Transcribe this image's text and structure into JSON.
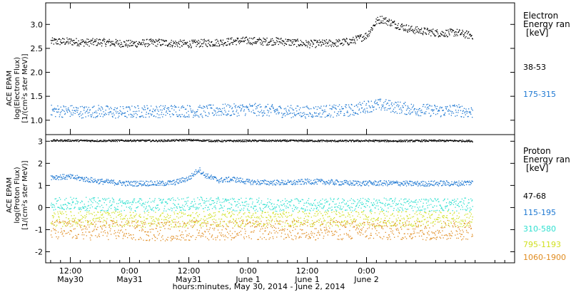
{
  "chart_data": [
    {
      "type": "scatter",
      "panel": "electron",
      "ylabel_lines": [
        "ACE EPAM",
        "log(Electron Flux)",
        "[1/(cm²s ster MeV)]"
      ],
      "ylim": [
        0.7,
        3.45
      ],
      "yticks": [
        1.0,
        1.5,
        2.0,
        2.5,
        3.0
      ],
      "ytick_labels": [
        "1.0",
        "1.5",
        "2.0",
        "2.5",
        "3.0"
      ],
      "legend_title_lines": [
        "Electron",
        "Energy ran",
        "[keV]"
      ],
      "series": [
        {
          "name": "38-53",
          "color": "#000000",
          "x": [
            0,
            3,
            6,
            9,
            12,
            15,
            18,
            21,
            24,
            27,
            30,
            33,
            36,
            39,
            42,
            45,
            48,
            51,
            54,
            57,
            60,
            62,
            63,
            66,
            69,
            72,
            75,
            78,
            81
          ],
          "y": [
            2.65,
            2.63,
            2.64,
            2.62,
            2.6,
            2.62,
            2.63,
            2.61,
            2.6,
            2.62,
            2.63,
            2.66,
            2.67,
            2.65,
            2.66,
            2.63,
            2.6,
            2.61,
            2.62,
            2.66,
            2.78,
            3.08,
            3.12,
            3.0,
            2.9,
            2.86,
            2.82,
            2.84,
            2.78
          ],
          "spread": 0.08
        },
        {
          "name": "175-315",
          "color": "#1e78d2",
          "x": [
            0,
            3,
            6,
            9,
            12,
            15,
            18,
            21,
            24,
            27,
            30,
            33,
            36,
            39,
            42,
            45,
            48,
            51,
            54,
            57,
            60,
            63,
            66,
            69,
            72,
            75,
            78,
            81
          ],
          "y": [
            1.2,
            1.18,
            1.2,
            1.17,
            1.18,
            1.2,
            1.19,
            1.21,
            1.2,
            1.19,
            1.22,
            1.22,
            1.24,
            1.22,
            1.2,
            1.19,
            1.18,
            1.2,
            1.2,
            1.22,
            1.3,
            1.33,
            1.28,
            1.24,
            1.22,
            1.2,
            1.22,
            1.18
          ],
          "spread": 0.13
        }
      ]
    },
    {
      "type": "scatter",
      "panel": "proton",
      "ylabel_lines": [
        "ACE EPAM",
        "log(Proton Flux)",
        "[1/(cm²s ster MeV)]"
      ],
      "ylim": [
        -2.5,
        3.3
      ],
      "yticks": [
        -2,
        -1,
        0,
        1,
        2,
        3
      ],
      "ytick_labels": [
        "-2",
        "-1",
        "0",
        "1",
        "2",
        "3"
      ],
      "legend_title_lines": [
        "Proton",
        "Energy ran",
        "[keV]"
      ],
      "series": [
        {
          "name": "47-68",
          "color": "#000000",
          "x": [
            0,
            6,
            12,
            18,
            24,
            30,
            36,
            42,
            48,
            54,
            60,
            66,
            72,
            78,
            81
          ],
          "y": [
            3.05,
            3.04,
            3.05,
            3.04,
            3.07,
            3.03,
            3.04,
            3.04,
            3.04,
            3.03,
            3.04,
            3.03,
            3.04,
            3.04,
            3.03
          ],
          "spread": 0.04
        },
        {
          "name": "115-195",
          "color": "#1e78d2",
          "x": [
            0,
            3,
            6,
            9,
            12,
            15,
            18,
            21,
            24,
            26,
            27,
            30,
            33,
            36,
            39,
            42,
            45,
            48,
            51,
            54,
            57,
            60,
            63,
            66,
            69,
            72,
            75,
            78,
            81
          ],
          "y": [
            1.4,
            1.3,
            1.2,
            1.15,
            1.1,
            1.12,
            1.1,
            1.15,
            1.35,
            1.75,
            1.5,
            1.25,
            1.3,
            1.18,
            1.15,
            1.15,
            1.14,
            1.2,
            1.18,
            1.15,
            1.12,
            1.12,
            1.12,
            1.12,
            1.1,
            1.1,
            1.12,
            1.1,
            1.15
          ],
          "spread": 0.12
        },
        {
          "name": "310-580",
          "color": "#30e0d0",
          "x": [
            0,
            9,
            18,
            27,
            36,
            45,
            54,
            63,
            72,
            81
          ],
          "y": [
            0.2,
            0.15,
            0.15,
            0.2,
            0.15,
            0.15,
            0.15,
            0.15,
            0.15,
            0.15
          ],
          "spread": 0.3
        },
        {
          "name": "795-1193",
          "color": "#d0e020",
          "x": [
            0,
            9,
            18,
            27,
            36,
            45,
            54,
            63,
            72,
            81
          ],
          "y": [
            -0.5,
            -0.5,
            -0.55,
            -0.5,
            -0.5,
            -0.5,
            -0.5,
            -0.5,
            -0.5,
            -0.5
          ],
          "spread": 0.35
        },
        {
          "name": "1060-1900",
          "color": "#e08c20",
          "x": [
            0,
            9,
            18,
            27,
            36,
            45,
            54,
            63,
            72,
            81
          ],
          "y": [
            -1.0,
            -1.0,
            -1.05,
            -1.0,
            -1.0,
            -1.0,
            -1.0,
            -1.0,
            -1.0,
            -1.0
          ],
          "spread": 0.45
        }
      ]
    }
  ],
  "xaxis": {
    "xlim": [
      -5,
      90
    ],
    "ticks": [
      {
        "x": 0,
        "time": "12:00",
        "day": "May30"
      },
      {
        "x": 12,
        "time": "0:00",
        "day": "May31"
      },
      {
        "x": 24,
        "time": "12:00",
        "day": "May31"
      },
      {
        "x": 36,
        "time": "0:00",
        "day": "June 1"
      },
      {
        "x": 48,
        "time": "12:00",
        "day": "June 1"
      },
      {
        "x": 60,
        "time": "0:00",
        "day": "June 2"
      }
    ],
    "label": "hours:minutes, May 30, 2014 - June  2, 2014"
  }
}
